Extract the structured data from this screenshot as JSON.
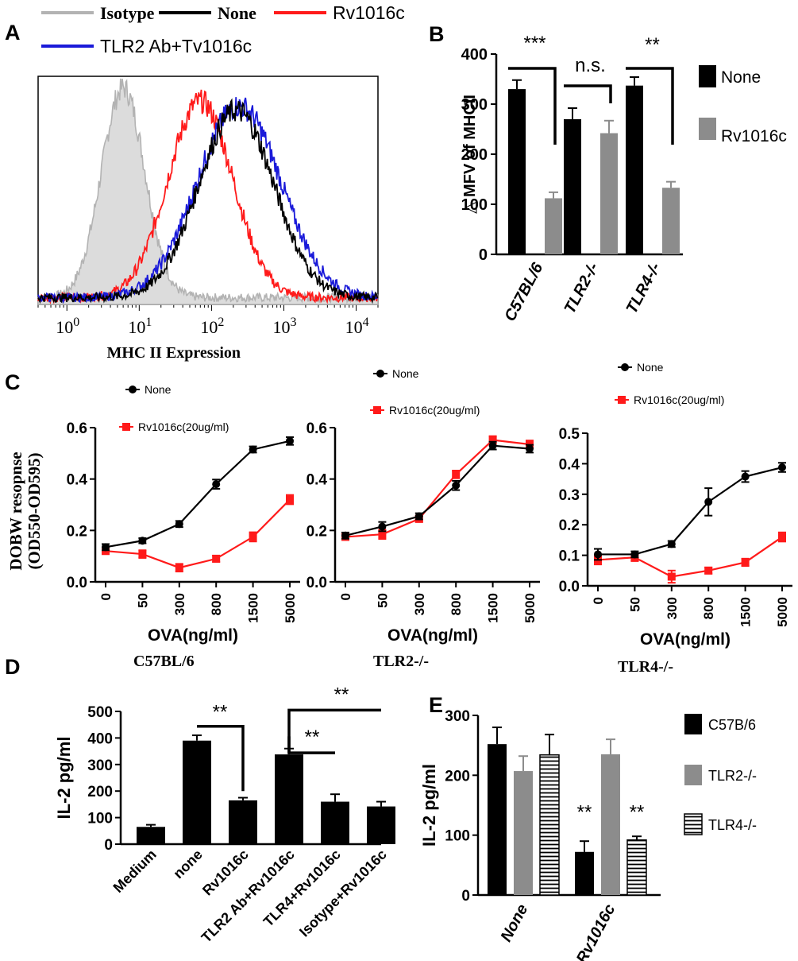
{
  "panel_letters": {
    "a": "A",
    "b": "B",
    "c": "C",
    "d": "D",
    "e": "E"
  },
  "colors": {
    "isotype": "#b3b3b3",
    "none": "#000000",
    "rv1016c": "#ff1a1a",
    "tlr2ab": "#1a1ad9",
    "grey_bar": "#8c8c8c"
  },
  "chart_data": [
    {
      "id": "A",
      "type": "line",
      "title": "",
      "xlabel": "MHC II Expression",
      "ylabel": "",
      "xscale": "log",
      "xlim": [
        0.4,
        20000
      ],
      "ylim": [
        0,
        100
      ],
      "legend": [
        "Isotype",
        "None",
        "Rv1016c",
        "TLR2 Ab+Tv1016c"
      ],
      "xticks": [
        {
          "value": 1,
          "base": "10",
          "exp": "0"
        },
        {
          "value": 10,
          "base": "10",
          "exp": "1"
        },
        {
          "value": 100,
          "base": "10",
          "exp": "2"
        },
        {
          "value": 1000,
          "base": "10",
          "exp": "3"
        },
        {
          "value": 10000,
          "base": "10",
          "exp": "4"
        }
      ],
      "series": [
        {
          "name": "Isotype",
          "filled": true,
          "peak_x": 6,
          "peak_y": 92,
          "width_log": 0.3
        },
        {
          "name": "None",
          "filled": false,
          "peak_x": 220,
          "peak_y": 82,
          "width_log": 0.52
        },
        {
          "name": "Rv1016c",
          "filled": false,
          "peak_x": 70,
          "peak_y": 86,
          "width_log": 0.45
        },
        {
          "name": "TLR2 Ab+Tv1016c",
          "filled": false,
          "peak_x": 240,
          "peak_y": 84,
          "width_log": 0.58
        }
      ]
    },
    {
      "id": "B",
      "type": "bar",
      "title": "",
      "ylabel": "△ MFV of  MHCII",
      "ylim": [
        0,
        400
      ],
      "yticks": [
        0,
        100,
        200,
        300,
        400
      ],
      "categories": [
        "C57BL/6",
        "TLR2-/-",
        "TLR4-/-"
      ],
      "series": [
        {
          "name": "None",
          "values": [
            330,
            270,
            337
          ],
          "errors": [
            18,
            22,
            17
          ]
        },
        {
          "name": "Rv1016c",
          "values": [
            112,
            242,
            133
          ],
          "errors": [
            12,
            25,
            12
          ]
        }
      ],
      "significance": [
        "***",
        "n.s.",
        "**"
      ]
    },
    {
      "id": "C1",
      "type": "line",
      "title": "",
      "xlabel": "OVA(ng/ml)",
      "ylabel": "DOBW resopnse (OD550-OD595)",
      "categories": [
        "0",
        "50",
        "300",
        "800",
        "1500",
        "5000"
      ],
      "ylim": [
        0,
        0.6
      ],
      "yticks": [
        "0.0",
        "0.2",
        "0.4",
        "0.6"
      ],
      "legend": [
        "None",
        "Rv1016c(20ug/ml)"
      ],
      "series": [
        {
          "name": "None",
          "values": [
            0.135,
            0.16,
            0.225,
            0.38,
            0.515,
            0.548
          ],
          "errors": [
            0.012,
            0.01,
            0.012,
            0.018,
            0.012,
            0.015
          ]
        },
        {
          "name": "Rv1016c(20ug/ml)",
          "values": [
            0.12,
            0.108,
            0.055,
            0.09,
            0.175,
            0.32
          ],
          "errors": [
            0.012,
            0.015,
            0.015,
            0.012,
            0.018,
            0.018
          ]
        }
      ]
    },
    {
      "id": "C2",
      "type": "line",
      "title": "",
      "xlabel": "OVA(ng/ml)",
      "ylabel": "",
      "categories": [
        "0",
        "50",
        "300",
        "800",
        "1500",
        "5000"
      ],
      "ylim": [
        0,
        0.6
      ],
      "yticks": [
        "0.0",
        "0.2",
        "0.4",
        "0.6"
      ],
      "legend": [
        "None",
        "Rv1016c(20ug/ml)"
      ],
      "series": [
        {
          "name": "None",
          "values": [
            0.18,
            0.215,
            0.255,
            0.375,
            0.53,
            0.518
          ],
          "errors": [
            0.012,
            0.018,
            0.012,
            0.018,
            0.015,
            0.015
          ]
        },
        {
          "name": "Rv1016c(20ug/ml)",
          "values": [
            0.175,
            0.185,
            0.245,
            0.418,
            0.552,
            0.535
          ],
          "errors": [
            0.012,
            0.018,
            0.012,
            0.015,
            0.015,
            0.015
          ]
        }
      ]
    },
    {
      "id": "C3",
      "type": "line",
      "title": "",
      "xlabel": "OVA(ng/ml)",
      "ylabel": "",
      "categories": [
        "0",
        "50",
        "300",
        "800",
        "1500",
        "5000"
      ],
      "ylim": [
        0,
        0.5
      ],
      "yticks": [
        "0.0",
        "0.1",
        "0.2",
        "0.3",
        "0.4",
        "0.5"
      ],
      "legend": [
        "None",
        "Rv1016c(20ug/ml)"
      ],
      "series": [
        {
          "name": "None",
          "values": [
            0.103,
            0.103,
            0.137,
            0.275,
            0.358,
            0.388
          ],
          "errors": [
            0.018,
            0.01,
            0.01,
            0.045,
            0.018,
            0.015
          ]
        },
        {
          "name": "Rv1016c(20ug/ml)",
          "values": [
            0.085,
            0.093,
            0.03,
            0.05,
            0.077,
            0.16
          ],
          "errors": [
            0.015,
            0.012,
            0.02,
            0.01,
            0.012,
            0.015
          ]
        }
      ]
    },
    {
      "id": "D",
      "type": "bar",
      "title": "",
      "ylabel": "IL-2 pg/ml",
      "ylim": [
        0,
        500
      ],
      "yticks": [
        0,
        100,
        200,
        300,
        400,
        500
      ],
      "categories": [
        "Medium",
        "none",
        "Rv1016c",
        "TLR2 Ab+Rv1016c",
        "TLR4+Rv1016c",
        "Isotype+Rv1016c"
      ],
      "values": [
        65,
        390,
        165,
        338,
        160,
        142
      ],
      "errors": [
        8,
        20,
        10,
        22,
        28,
        18
      ],
      "significance": [
        "**",
        "**",
        "**"
      ]
    },
    {
      "id": "E",
      "type": "bar",
      "title": "",
      "ylabel": "IL-2 pg/ml",
      "ylim": [
        0,
        300
      ],
      "yticks": [
        0,
        100,
        200,
        300
      ],
      "categories": [
        "None",
        "Rv1016c"
      ],
      "series": [
        {
          "name": "C57B/6",
          "values": [
            252,
            72
          ],
          "errors": [
            28,
            18
          ]
        },
        {
          "name": "TLR2-/-",
          "values": [
            207,
            235
          ],
          "errors": [
            25,
            25
          ]
        },
        {
          "name": "TLR4-/-",
          "values": [
            234,
            92
          ],
          "errors": [
            34,
            6
          ]
        }
      ],
      "significance": [
        "**",
        "**"
      ]
    }
  ],
  "panel_titles": {
    "c57": "C57BL/6",
    "tlr2": "TLR2-/-",
    "tlr4": "TLR4-/-"
  }
}
